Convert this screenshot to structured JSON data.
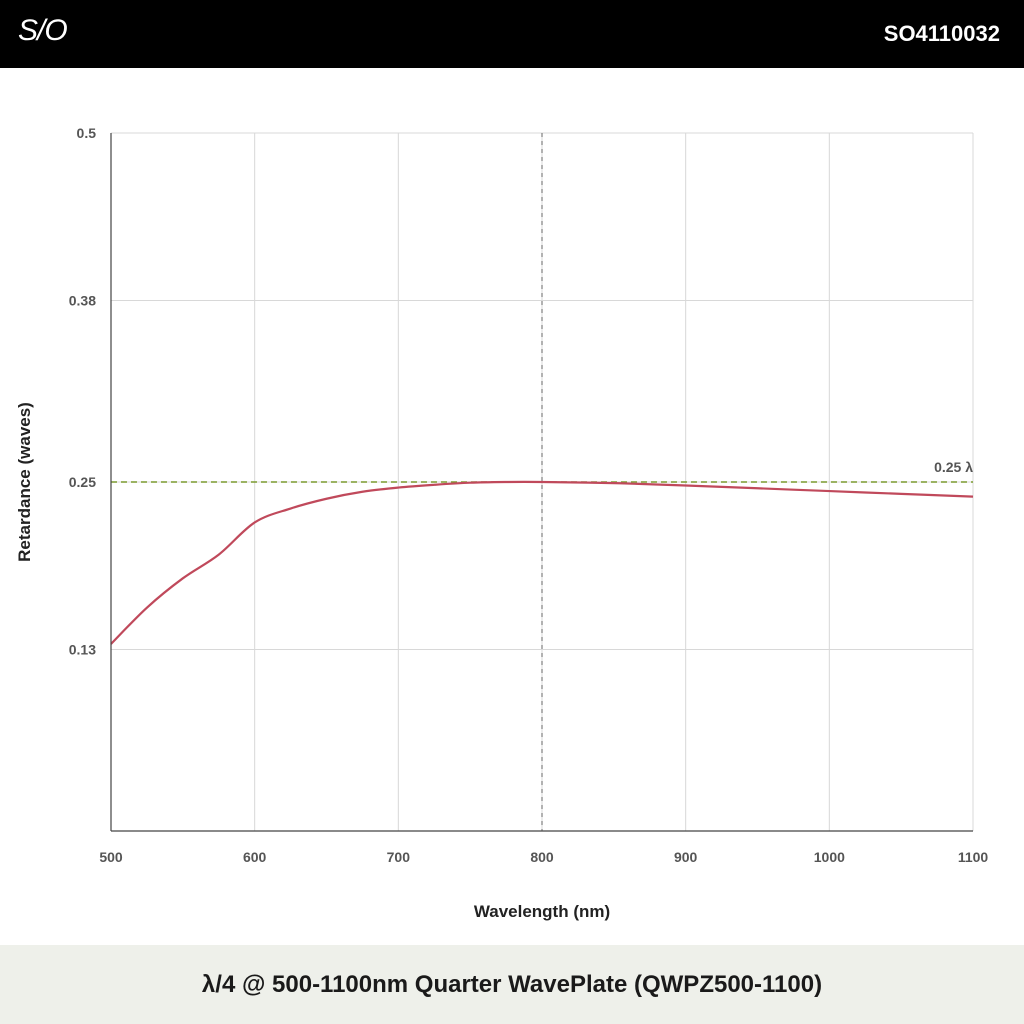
{
  "header": {
    "logo": "S/O",
    "code": "SO4110032"
  },
  "footer": {
    "title": "λ/4 @ 500-1100nm Quarter WavePlate (QWPZ500-1100)"
  },
  "chart_data": {
    "type": "line",
    "title": "",
    "xlabel": "Wavelength (nm)",
    "ylabel": "Retardance (waves)",
    "xlim": [
      500,
      1100
    ],
    "ylim": [
      0,
      0.5
    ],
    "x_ticks": [
      500,
      600,
      700,
      800,
      900,
      1000,
      1100
    ],
    "y_ticks": [
      0.13,
      0.25,
      0.38,
      0.5
    ],
    "y_tick_labels": [
      "0.13",
      "0.25",
      "0.38",
      "0.5"
    ],
    "grid": true,
    "series": [
      {
        "color": "#c0495b",
        "x": [
          500,
          525,
          550,
          575,
          600,
          625,
          650,
          675,
          700,
          725,
          750,
          775,
          800,
          850,
          900,
          950,
          1000,
          1050,
          1100
        ],
        "y": [
          0.134,
          0.16,
          0.181,
          0.198,
          0.221,
          0.231,
          0.238,
          0.243,
          0.246,
          0.248,
          0.2495,
          0.25,
          0.25,
          0.2492,
          0.2475,
          0.2455,
          0.2435,
          0.2415,
          0.2395
        ]
      }
    ],
    "reference_line": {
      "y": 0.25,
      "label": "0.25 λ",
      "color": "#7a9a2e",
      "style": "dashed"
    },
    "vertical_marker": {
      "x": 800,
      "color": "#666666",
      "style": "dashed"
    }
  }
}
